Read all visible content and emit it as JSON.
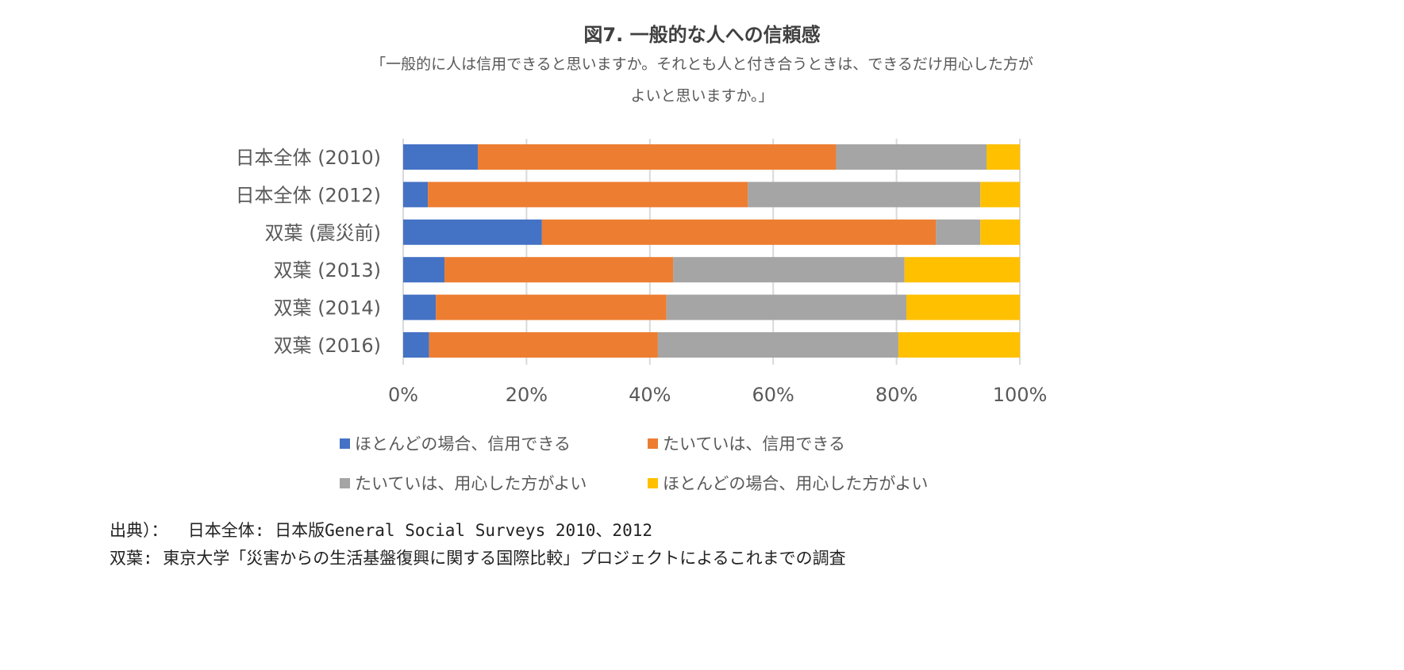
{
  "chart_data": {
    "type": "bar",
    "orientation": "horizontal",
    "stacked": "percent",
    "title": "図7. 一般的な人への信頼感",
    "subtitle": [
      "「一般的に人は信用できると思いますか。それとも人と付き合うときは、できるだけ用心した方が",
      "よいと思いますか。」"
    ],
    "categories": [
      "日本全体 (2010)",
      "日本全体 (2012)",
      "双葉 (震災前)",
      "双葉 (2013)",
      "双葉 (2014)",
      "双葉 (2016)"
    ],
    "series": [
      {
        "name": "ほとんどの場合、信用できる",
        "color": "#4472C4",
        "values": [
          12.1,
          4.0,
          22.5,
          6.7,
          5.3,
          4.2
        ]
      },
      {
        "name": "たいていは、信用できる",
        "color": "#ED7D31",
        "values": [
          58.1,
          51.9,
          63.9,
          37.1,
          37.4,
          37.1
        ]
      },
      {
        "name": "たいていは、用心した方がよい",
        "color": "#A5A5A5",
        "values": [
          24.4,
          37.7,
          7.2,
          37.5,
          38.9,
          39.0
        ]
      },
      {
        "name": "ほとんどの場合、用心した方がよい",
        "color": "#FFC000",
        "values": [
          5.4,
          6.4,
          6.4,
          18.7,
          18.4,
          19.7
        ]
      }
    ],
    "xticks": [
      "0%",
      "20%",
      "40%",
      "60%",
      "80%",
      "100%"
    ],
    "xlim": [
      0,
      100
    ],
    "grid": true,
    "legend": "bottom"
  },
  "footer": [
    "出典）：  日本全体: 日本版General Social Surveys 2010、2012",
    "双葉: 東京大学「災害からの生活基盤復興に関する国際比較」プロジェクトによるこれまでの調査"
  ]
}
